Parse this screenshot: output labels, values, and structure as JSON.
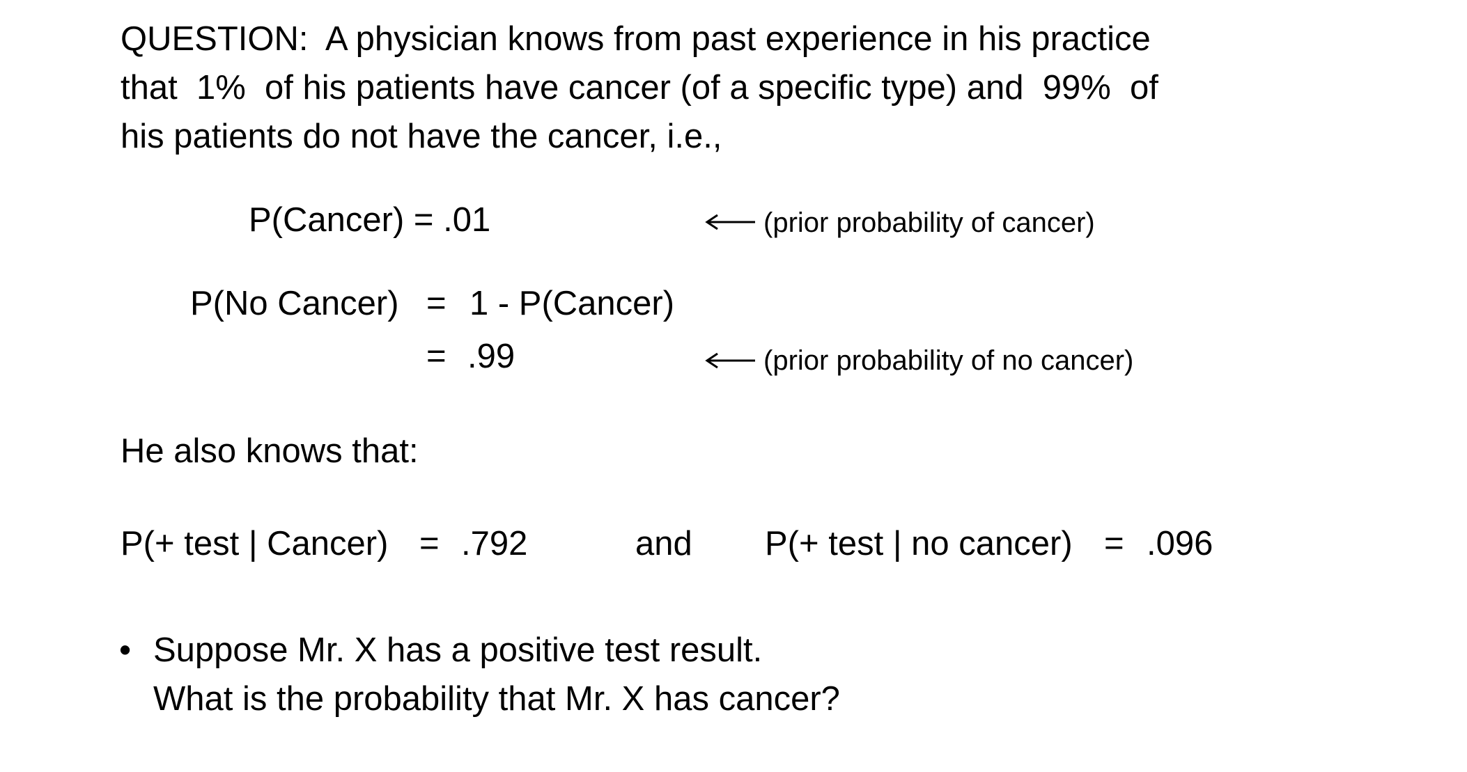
{
  "question": {
    "line1": "QUESTION:  A physician knows from past experience in his practice",
    "line2": "that  1%  of his patients have cancer (of a specific type) and  99%  of",
    "line3": "his patients do not have the cancer, i.e.,"
  },
  "prior_cancer": {
    "equation": "P(Cancer) = .01",
    "note": "(prior probability of cancer)"
  },
  "prior_no_cancer": {
    "lhs": "P(No Cancer)",
    "eq1": "=",
    "rhs1": "1 - P(Cancer)",
    "eq2": "=",
    "rhs2": ".99",
    "note": "(prior probability of no cancer)"
  },
  "also_knows": "He also knows that:",
  "likelihoods": {
    "pos_given_cancer_lhs": "P(+ test | Cancer)",
    "pos_given_cancer_eq": "=",
    "pos_given_cancer_val": ".792",
    "conjunction": "and",
    "pos_given_no_cancer_lhs": "P(+ test | no cancer)",
    "pos_given_no_cancer_eq": "=",
    "pos_given_no_cancer_val": ".096"
  },
  "bullet": {
    "symbol": "•",
    "line1": "Suppose Mr. X has a positive test result.",
    "line2": "What is the probability that Mr. X has cancer?"
  }
}
